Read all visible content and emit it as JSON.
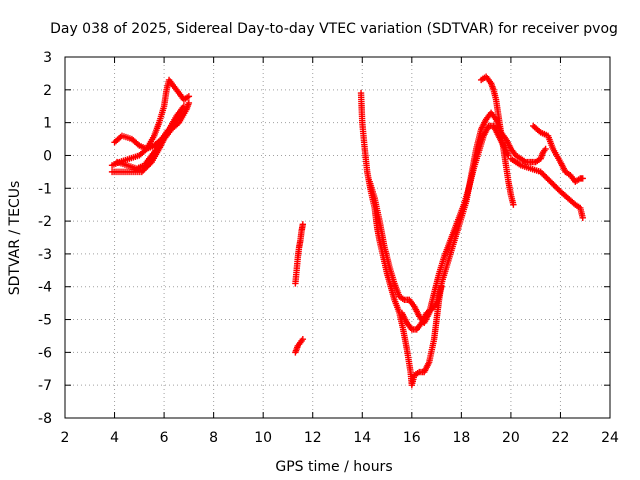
{
  "chart_data": {
    "type": "scatter",
    "title": "Day 038 of 2025, Sidereal Day-to-day VTEC variation (SDTVAR) for receiver pvog",
    "xlabel": "GPS time / hours",
    "ylabel": "SDTVAR / TECUs",
    "xlim": [
      2,
      24
    ],
    "ylim": [
      -8,
      3
    ],
    "xticks": [
      "2",
      "4",
      "6",
      "8",
      "10",
      "12",
      "14",
      "16",
      "18",
      "20",
      "22",
      "24"
    ],
    "yticks": [
      "3",
      "2",
      "1",
      "0",
      "-1",
      "-2",
      "-3",
      "-4",
      "-5",
      "-6",
      "-7",
      "-8"
    ],
    "grid": true,
    "marker": "plus",
    "color": "#ff0000",
    "tracks": [
      {
        "points": [
          [
            3.9,
            -0.3
          ],
          [
            4.2,
            -0.2
          ],
          [
            4.6,
            -0.1
          ],
          [
            5.0,
            0.0
          ],
          [
            5.3,
            0.2
          ],
          [
            5.6,
            0.6
          ],
          [
            5.8,
            1.0
          ],
          [
            6.0,
            1.5
          ],
          [
            6.1,
            2.0
          ],
          [
            6.2,
            2.3
          ],
          [
            6.4,
            2.1
          ],
          [
            6.6,
            1.9
          ],
          [
            6.8,
            1.7
          ],
          [
            7.0,
            1.8
          ]
        ]
      },
      {
        "points": [
          [
            3.9,
            -0.5
          ],
          [
            4.3,
            -0.5
          ],
          [
            4.7,
            -0.5
          ],
          [
            5.1,
            -0.5
          ],
          [
            5.5,
            -0.2
          ],
          [
            5.8,
            0.2
          ],
          [
            6.0,
            0.5
          ],
          [
            6.3,
            0.8
          ],
          [
            6.6,
            1.0
          ],
          [
            6.9,
            1.4
          ],
          [
            7.0,
            1.6
          ]
        ]
      },
      {
        "points": [
          [
            4.0,
            0.4
          ],
          [
            4.3,
            0.6
          ],
          [
            4.7,
            0.5
          ],
          [
            5.0,
            0.3
          ],
          [
            5.3,
            0.2
          ],
          [
            5.6,
            0.3
          ],
          [
            5.9,
            0.5
          ],
          [
            6.2,
            0.8
          ],
          [
            6.5,
            1.2
          ],
          [
            6.8,
            1.5
          ]
        ]
      },
      {
        "points": [
          [
            4.1,
            -0.2
          ],
          [
            4.5,
            -0.3
          ],
          [
            4.9,
            -0.4
          ],
          [
            5.2,
            -0.3
          ],
          [
            5.5,
            0.0
          ],
          [
            5.8,
            0.3
          ],
          [
            6.1,
            0.7
          ],
          [
            6.4,
            1.0
          ],
          [
            6.7,
            1.3
          ]
        ]
      },
      {
        "points": [
          [
            11.3,
            -3.9
          ],
          [
            11.35,
            -3.5
          ],
          [
            11.4,
            -3.1
          ],
          [
            11.45,
            -2.8
          ],
          [
            11.5,
            -2.6
          ],
          [
            11.55,
            -2.3
          ],
          [
            11.6,
            -2.1
          ]
        ]
      },
      {
        "points": [
          [
            11.3,
            -6.0
          ],
          [
            11.4,
            -5.8
          ],
          [
            11.5,
            -5.7
          ],
          [
            11.6,
            -5.6
          ]
        ]
      },
      {
        "points": [
          [
            13.95,
            1.9
          ],
          [
            14.0,
            1.0
          ],
          [
            14.1,
            0.2
          ],
          [
            14.2,
            -0.5
          ],
          [
            14.35,
            -1.1
          ],
          [
            14.5,
            -1.6
          ],
          [
            14.6,
            -2.2
          ],
          [
            14.7,
            -2.6
          ],
          [
            14.85,
            -3.1
          ],
          [
            15.0,
            -3.6
          ],
          [
            15.15,
            -4.0
          ],
          [
            15.3,
            -4.4
          ],
          [
            15.5,
            -4.8
          ],
          [
            15.65,
            -5.3
          ],
          [
            15.8,
            -5.9
          ],
          [
            15.95,
            -6.6
          ],
          [
            16.0,
            -7.0
          ],
          [
            16.1,
            -6.7
          ],
          [
            16.3,
            -6.6
          ],
          [
            16.5,
            -6.6
          ],
          [
            16.7,
            -6.3
          ],
          [
            16.9,
            -5.6
          ],
          [
            17.0,
            -5.0
          ],
          [
            17.1,
            -4.4
          ],
          [
            17.2,
            -3.9
          ],
          [
            17.4,
            -3.4
          ],
          [
            17.6,
            -2.9
          ],
          [
            17.8,
            -2.4
          ],
          [
            18.0,
            -1.9
          ],
          [
            18.2,
            -1.4
          ],
          [
            18.4,
            -0.6
          ],
          [
            18.6,
            0.2
          ],
          [
            18.8,
            0.8
          ],
          [
            19.0,
            1.1
          ],
          [
            19.2,
            1.3
          ],
          [
            19.4,
            1.1
          ],
          [
            19.6,
            0.7
          ],
          [
            19.8,
            0.5
          ],
          [
            20.0,
            0.2
          ],
          [
            20.2,
            0.0
          ],
          [
            20.4,
            -0.1
          ],
          [
            20.6,
            -0.2
          ],
          [
            20.8,
            -0.2
          ],
          [
            21.0,
            -0.2
          ],
          [
            21.2,
            -0.1
          ],
          [
            21.3,
            0.1
          ],
          [
            21.4,
            0.2
          ]
        ]
      },
      {
        "points": [
          [
            14.3,
            -0.8
          ],
          [
            14.5,
            -1.3
          ],
          [
            14.7,
            -2.0
          ],
          [
            14.9,
            -2.8
          ],
          [
            15.1,
            -3.4
          ],
          [
            15.3,
            -3.9
          ],
          [
            15.5,
            -4.3
          ],
          [
            15.7,
            -4.4
          ],
          [
            15.9,
            -4.4
          ],
          [
            16.1,
            -4.6
          ],
          [
            16.3,
            -4.9
          ],
          [
            16.5,
            -5.1
          ],
          [
            16.7,
            -4.8
          ],
          [
            16.9,
            -4.2
          ],
          [
            17.1,
            -3.6
          ],
          [
            17.3,
            -3.1
          ],
          [
            17.5,
            -2.7
          ],
          [
            17.7,
            -2.3
          ],
          [
            17.9,
            -1.9
          ],
          [
            18.1,
            -1.5
          ],
          [
            18.3,
            -1.0
          ],
          [
            18.5,
            -0.4
          ],
          [
            18.7,
            0.1
          ],
          [
            18.9,
            0.6
          ],
          [
            19.1,
            0.9
          ],
          [
            19.3,
            0.9
          ],
          [
            19.5,
            0.6
          ],
          [
            19.7,
            0.3
          ],
          [
            19.9,
            0.0
          ]
        ]
      },
      {
        "points": [
          [
            15.6,
            -4.8
          ],
          [
            15.8,
            -5.1
          ],
          [
            16.0,
            -5.3
          ],
          [
            16.2,
            -5.3
          ],
          [
            16.4,
            -5.1
          ],
          [
            16.6,
            -4.8
          ],
          [
            16.8,
            -4.7
          ],
          [
            17.0,
            -4.5
          ],
          [
            17.2,
            -4.0
          ]
        ]
      },
      {
        "points": [
          [
            18.8,
            2.3
          ],
          [
            19.0,
            2.4
          ],
          [
            19.2,
            2.2
          ],
          [
            19.3,
            2.0
          ],
          [
            19.4,
            1.7
          ],
          [
            19.5,
            1.2
          ],
          [
            19.6,
            0.7
          ],
          [
            19.7,
            0.2
          ],
          [
            19.8,
            -0.3
          ],
          [
            19.9,
            -0.8
          ],
          [
            20.0,
            -1.2
          ],
          [
            20.1,
            -1.5
          ]
        ]
      },
      {
        "points": [
          [
            20.9,
            0.9
          ],
          [
            21.2,
            0.7
          ],
          [
            21.5,
            0.6
          ],
          [
            21.7,
            0.2
          ],
          [
            22.0,
            -0.2
          ],
          [
            22.2,
            -0.5
          ],
          [
            22.4,
            -0.6
          ],
          [
            22.6,
            -0.8
          ],
          [
            22.8,
            -0.7
          ],
          [
            22.9,
            -0.7
          ]
        ]
      },
      {
        "points": [
          [
            20.0,
            -0.1
          ],
          [
            20.4,
            -0.3
          ],
          [
            20.8,
            -0.4
          ],
          [
            21.2,
            -0.5
          ],
          [
            21.6,
            -0.8
          ],
          [
            22.0,
            -1.1
          ],
          [
            22.3,
            -1.3
          ],
          [
            22.6,
            -1.5
          ],
          [
            22.8,
            -1.6
          ],
          [
            22.9,
            -1.9
          ]
        ]
      }
    ]
  }
}
